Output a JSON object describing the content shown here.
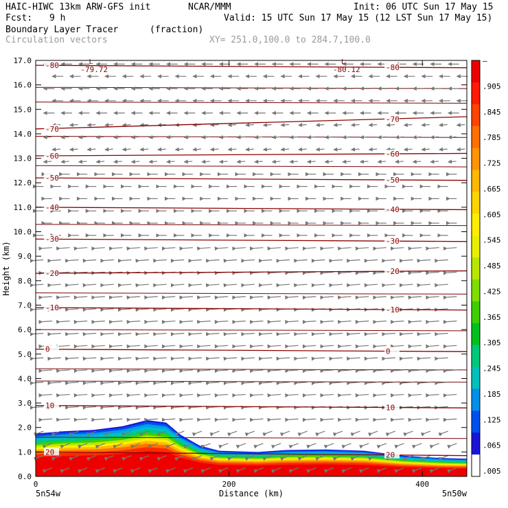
{
  "header": {
    "model": "HAIC-HIWC 13km ARW-GFS init",
    "org": "NCAR/MMM",
    "init": "Init: 06 UTC Sun 17 May 15",
    "fcst_label": "Fcst:",
    "fcst_value": "9 h",
    "valid": "Valid: 15 UTC Sun 17 May 15 (12 LST Sun 17 May 15)",
    "field": "Boundary Layer Tracer",
    "field_units": "(fraction)",
    "vectors": "Circulation vectors",
    "xy_range": "XY= 251.0,100.0 to 284.7,100.0"
  },
  "chart_data": {
    "type": "heatmap",
    "xlabel": "Distance (km)",
    "ylabel": "Height (km)",
    "xlim": [
      0,
      446
    ],
    "ylim": [
      0,
      17
    ],
    "x_ticks": [
      "0",
      "200",
      "400"
    ],
    "y_ticks": [
      "0.0",
      "1.0",
      "2.0",
      "3.0",
      "4.0",
      "5.0",
      "6.0",
      "7.0",
      "8.0",
      "9.0",
      "10.0",
      "11.0",
      "12.0",
      "13.0",
      "14.0",
      "15.0",
      "16.0",
      "17.0"
    ],
    "left_end_label": "5n54w",
    "right_end_label": "5n50w",
    "colorbar": {
      "labels": [
        "–",
        ".905",
        ".845",
        ".785",
        ".725",
        ".665",
        ".605",
        ".545",
        ".485",
        ".425",
        ".365",
        ".305",
        ".245",
        ".185",
        ".125",
        ".065",
        ".005"
      ],
      "colors": [
        "#ee0000",
        "#ff1a00",
        "#ff4400",
        "#ff7000",
        "#ff9500",
        "#ffb800",
        "#ffd500",
        "#ffee00",
        "#e8f000",
        "#b8e800",
        "#7fde00",
        "#3ecf00",
        "#00c020",
        "#00c87a",
        "#00c0c0",
        "#0090e8",
        "#0050f0",
        "#1a14d8",
        "#ffffff"
      ]
    },
    "tracer_top": [
      {
        "x": 0,
        "y": 1.75
      },
      {
        "x": 30,
        "y": 1.85
      },
      {
        "x": 60,
        "y": 1.9
      },
      {
        "x": 90,
        "y": 2.05
      },
      {
        "x": 115,
        "y": 2.3
      },
      {
        "x": 135,
        "y": 2.2
      },
      {
        "x": 150,
        "y": 1.7
      },
      {
        "x": 170,
        "y": 1.25
      },
      {
        "x": 190,
        "y": 1.05
      },
      {
        "x": 230,
        "y": 1.0
      },
      {
        "x": 260,
        "y": 1.08
      },
      {
        "x": 300,
        "y": 1.1
      },
      {
        "x": 340,
        "y": 1.05
      },
      {
        "x": 380,
        "y": 0.85
      },
      {
        "x": 420,
        "y": 0.75
      },
      {
        "x": 446,
        "y": 0.72
      }
    ],
    "temp_contours": [
      {
        "label": "20",
        "y_left": 1.0,
        "y_right": 0.85
      },
      {
        "label": "10",
        "y_left": 2.9,
        "y_right": 2.8
      },
      {
        "label": "0",
        "y_left": 5.2,
        "y_right": 5.1
      },
      {
        "label": "-10",
        "y_left": 6.9,
        "y_right": 6.8
      },
      {
        "label": "-20",
        "y_left": 8.3,
        "y_right": 8.4
      },
      {
        "label": "-30",
        "y_left": 9.7,
        "y_right": 9.6
      },
      {
        "label": "-40",
        "y_left": 11.0,
        "y_right": 10.9
      },
      {
        "label": "-50",
        "y_left": 12.2,
        "y_right": 12.1
      },
      {
        "label": "-60",
        "y_left": 13.1,
        "y_right": 13.2
      },
      {
        "label": "-70",
        "y_left": 14.2,
        "y_right": 14.7
      },
      {
        "label": "-80",
        "y_left": 16.8,
        "y_right": 16.7
      }
    ],
    "extra_isolines": [
      1.6,
      3.9,
      4.4,
      6.0,
      7.5,
      10.3,
      12.7,
      13.9,
      15.3,
      15.9
    ],
    "lows": [
      {
        "symbol": "L",
        "value": "-79.72",
        "x": 55,
        "y": 16.8
      },
      {
        "symbol": "L",
        "value": "-80.12",
        "x": 316,
        "y": 16.8
      }
    ]
  }
}
